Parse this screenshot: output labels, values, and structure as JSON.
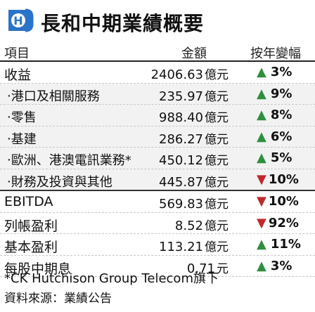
{
  "header": {
    "title": "長和中期業績概要"
  },
  "columns": {
    "item": "項目",
    "amount": "金額",
    "change": "按年變幅"
  },
  "rows": [
    {
      "label": "收益",
      "amount": "2406.63",
      "unit": "億元",
      "direction": "up",
      "change": "3%",
      "sub": false
    },
    {
      "label": "‧港口及相關服務",
      "amount": "235.97",
      "unit": "億元",
      "direction": "up",
      "change": "9%",
      "sub": true
    },
    {
      "label": "‧零售",
      "amount": "988.40",
      "unit": "億元",
      "direction": "up",
      "change": "8%",
      "sub": true
    },
    {
      "label": "‧基建",
      "amount": "286.27",
      "unit": "億元",
      "direction": "up",
      "change": "6%",
      "sub": true
    },
    {
      "label": "‧歐洲、港澳電訊業務*",
      "amount": "450.12",
      "unit": "億元",
      "direction": "up",
      "change": "5%",
      "sub": true
    },
    {
      "label": "‧財務及投資與其他",
      "amount": "445.87",
      "unit": "億元",
      "direction": "down",
      "change": "10%",
      "sub": true
    },
    {
      "label": "EBITDA",
      "amount": "569.83",
      "unit": "億元",
      "direction": "down",
      "change": "10%",
      "sub": false
    },
    {
      "label": "列帳盈利",
      "amount": "8.52",
      "unit": "億元",
      "direction": "down",
      "change": "92%",
      "sub": false
    },
    {
      "label": "基本盈利",
      "amount": "113.21",
      "unit": "億元",
      "direction": "up",
      "change": "11%",
      "sub": false
    },
    {
      "label": "每股中期息",
      "amount": "0.71",
      "unit": "元",
      "direction": "up",
      "change": "3%",
      "sub": false
    }
  ],
  "footnote": "*CK Hutchison Group Telecom旗下",
  "source": "資料來源：業績公告",
  "colors": {
    "up": "#2f8f3f",
    "down": "#c0282e",
    "logo": "#2a73c9"
  },
  "icons": {
    "logo": "ck-hutchison-logo-icon",
    "up": "triangle-up-icon",
    "down": "triangle-down-icon"
  }
}
